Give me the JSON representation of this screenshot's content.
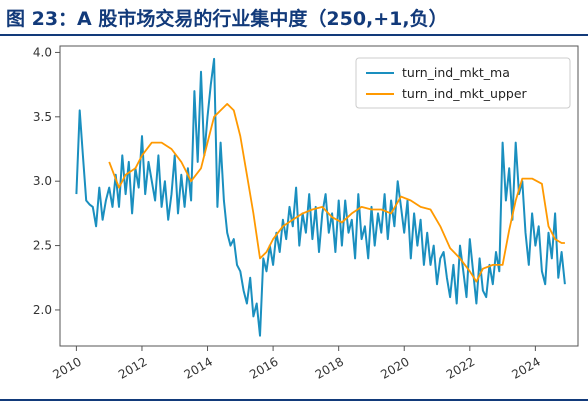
{
  "figure_title": "图 23：A 股市场交易的行业集中度（250,+1,负）",
  "chart_data": {
    "type": "line",
    "title": "",
    "xlabel": "",
    "ylabel": "",
    "xlim": [
      2009.5,
      2025.3
    ],
    "ylim": [
      1.72,
      4.05
    ],
    "grid": false,
    "legend_position": "top-right",
    "x_ticks": [
      2010,
      2012,
      2014,
      2016,
      2018,
      2020,
      2022,
      2024
    ],
    "x_tick_labels": [
      "2010",
      "2012",
      "2014",
      "2016",
      "2018",
      "2020",
      "2022",
      "2024"
    ],
    "y_ticks": [
      2.0,
      2.5,
      3.0,
      3.5,
      4.0
    ],
    "y_tick_labels": [
      "2.0",
      "2.5",
      "3.0",
      "3.5",
      "4.0"
    ],
    "series": [
      {
        "name": "turn_ind_mkt_ma",
        "color": "#1a8fbf",
        "x": [
          2010.0,
          2010.1,
          2010.2,
          2010.3,
          2010.4,
          2010.5,
          2010.6,
          2010.7,
          2010.8,
          2010.9,
          2011.0,
          2011.1,
          2011.2,
          2011.3,
          2011.4,
          2011.5,
          2011.6,
          2011.7,
          2011.8,
          2011.9,
          2012.0,
          2012.1,
          2012.2,
          2012.3,
          2012.4,
          2012.5,
          2012.6,
          2012.7,
          2012.8,
          2012.9,
          2013.0,
          2013.1,
          2013.2,
          2013.3,
          2013.4,
          2013.5,
          2013.6,
          2013.7,
          2013.8,
          2013.9,
          2014.0,
          2014.1,
          2014.2,
          2014.3,
          2014.4,
          2014.5,
          2014.6,
          2014.7,
          2014.8,
          2014.9,
          2015.0,
          2015.1,
          2015.2,
          2015.3,
          2015.4,
          2015.5,
          2015.6,
          2015.7,
          2015.8,
          2015.9,
          2016.0,
          2016.1,
          2016.2,
          2016.3,
          2016.4,
          2016.5,
          2016.6,
          2016.7,
          2016.8,
          2016.9,
          2017.0,
          2017.1,
          2017.2,
          2017.3,
          2017.4,
          2017.5,
          2017.6,
          2017.7,
          2017.8,
          2017.9,
          2018.0,
          2018.1,
          2018.2,
          2018.3,
          2018.4,
          2018.5,
          2018.6,
          2018.7,
          2018.8,
          2018.9,
          2019.0,
          2019.1,
          2019.2,
          2019.3,
          2019.4,
          2019.5,
          2019.6,
          2019.7,
          2019.8,
          2019.9,
          2020.0,
          2020.1,
          2020.2,
          2020.3,
          2020.4,
          2020.5,
          2020.6,
          2020.7,
          2020.8,
          2020.9,
          2021.0,
          2021.1,
          2021.2,
          2021.3,
          2021.4,
          2021.5,
          2021.6,
          2021.7,
          2021.8,
          2021.9,
          2022.0,
          2022.1,
          2022.2,
          2022.3,
          2022.4,
          2022.5,
          2022.6,
          2022.7,
          2022.8,
          2022.9,
          2023.0,
          2023.1,
          2023.2,
          2023.3,
          2023.4,
          2023.5,
          2023.6,
          2023.7,
          2023.8,
          2023.9,
          2024.0,
          2024.1,
          2024.2,
          2024.3,
          2024.4,
          2024.5,
          2024.6,
          2024.7,
          2024.8,
          2024.9
        ],
        "values": [
          2.9,
          3.55,
          3.2,
          2.85,
          2.82,
          2.8,
          2.65,
          2.95,
          2.7,
          2.85,
          2.95,
          2.8,
          3.05,
          2.8,
          3.2,
          2.9,
          3.15,
          2.75,
          3.1,
          2.95,
          3.35,
          2.9,
          3.15,
          3.0,
          2.85,
          3.2,
          2.8,
          3.0,
          2.7,
          2.9,
          3.2,
          2.75,
          3.05,
          2.8,
          3.1,
          2.85,
          3.7,
          3.15,
          3.85,
          3.2,
          3.5,
          3.75,
          3.95,
          2.8,
          3.3,
          2.85,
          2.6,
          2.5,
          2.55,
          2.35,
          2.3,
          2.15,
          2.05,
          2.25,
          1.95,
          2.05,
          1.8,
          2.4,
          2.3,
          2.5,
          2.35,
          2.6,
          2.45,
          2.7,
          2.55,
          2.8,
          2.65,
          2.95,
          2.5,
          2.75,
          2.6,
          2.9,
          2.55,
          2.8,
          2.45,
          2.75,
          2.9,
          2.6,
          2.75,
          2.45,
          2.85,
          2.5,
          2.85,
          2.6,
          2.7,
          2.4,
          2.9,
          2.55,
          2.65,
          2.4,
          2.8,
          2.5,
          2.75,
          2.6,
          2.9,
          2.55,
          2.85,
          2.65,
          3.0,
          2.8,
          2.6,
          2.85,
          2.4,
          2.75,
          2.5,
          2.7,
          2.35,
          2.6,
          2.35,
          2.5,
          2.2,
          2.4,
          2.45,
          2.25,
          2.1,
          2.35,
          2.05,
          2.5,
          2.3,
          2.1,
          2.55,
          2.3,
          2.05,
          2.4,
          2.15,
          2.1,
          2.35,
          2.2,
          2.45,
          2.3,
          3.3,
          2.85,
          3.1,
          2.7,
          3.3,
          2.9,
          3.0,
          2.6,
          2.35,
          2.75,
          2.5,
          2.65,
          2.3,
          2.2,
          2.6,
          2.4,
          2.75,
          2.25,
          2.45,
          2.2
        ]
      },
      {
        "name": "turn_ind_mkt_upper",
        "color": "#ff9900",
        "x": [
          2011.0,
          2011.3,
          2011.5,
          2011.8,
          2012.0,
          2012.3,
          2012.6,
          2012.9,
          2013.2,
          2013.5,
          2013.8,
          2014.0,
          2014.2,
          2014.4,
          2014.6,
          2014.8,
          2015.0,
          2015.2,
          2015.4,
          2015.6,
          2015.8,
          2016.0,
          2016.3,
          2016.6,
          2016.9,
          2017.2,
          2017.5,
          2017.8,
          2018.1,
          2018.4,
          2018.7,
          2019.0,
          2019.3,
          2019.6,
          2019.9,
          2020.2,
          2020.5,
          2020.8,
          2021.1,
          2021.4,
          2021.7,
          2022.0,
          2022.2,
          2022.4,
          2022.7,
          2023.0,
          2023.2,
          2023.4,
          2023.6,
          2023.9,
          2024.2,
          2024.4,
          2024.6,
          2024.8,
          2024.9
        ],
        "values": [
          3.15,
          2.95,
          3.05,
          3.1,
          3.2,
          3.3,
          3.3,
          3.25,
          3.15,
          3.0,
          3.1,
          3.3,
          3.5,
          3.55,
          3.6,
          3.55,
          3.35,
          3.05,
          2.75,
          2.4,
          2.45,
          2.55,
          2.65,
          2.7,
          2.75,
          2.78,
          2.8,
          2.72,
          2.68,
          2.75,
          2.8,
          2.78,
          2.78,
          2.75,
          2.88,
          2.85,
          2.8,
          2.78,
          2.65,
          2.48,
          2.4,
          2.3,
          2.22,
          2.32,
          2.35,
          2.35,
          2.62,
          2.85,
          3.02,
          3.02,
          2.98,
          2.65,
          2.55,
          2.52,
          2.52
        ]
      }
    ]
  }
}
